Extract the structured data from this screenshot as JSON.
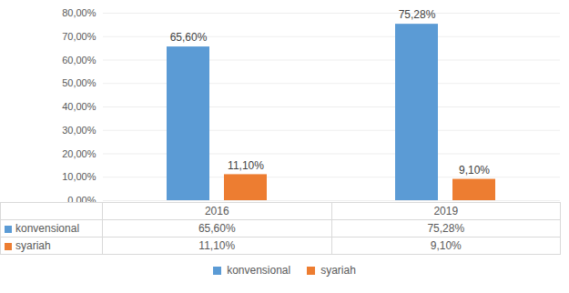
{
  "chart_data": {
    "type": "bar",
    "categories": [
      "2016",
      "2019"
    ],
    "series": [
      {
        "name": "konvensional",
        "color": "#5b9bd5",
        "values": [
          65.6,
          75.28
        ],
        "value_labels": [
          "65,60%",
          "75,28%"
        ]
      },
      {
        "name": "syariah",
        "color": "#ed7d31",
        "values": [
          11.1,
          9.1
        ],
        "value_labels": [
          "11,10%",
          "9,10%"
        ]
      }
    ],
    "ylim": [
      0,
      80
    ],
    "yticks": [
      {
        "value": 0,
        "label": "0,00%"
      },
      {
        "value": 10,
        "label": "10,00%"
      },
      {
        "value": 20,
        "label": "20,00%"
      },
      {
        "value": 30,
        "label": "30,00%"
      },
      {
        "value": 40,
        "label": "40,00%"
      },
      {
        "value": 50,
        "label": "50,00%"
      },
      {
        "value": 60,
        "label": "60,00%"
      },
      {
        "value": 70,
        "label": "70,00%"
      },
      {
        "value": 80,
        "label": "80,00%"
      }
    ],
    "grid": true,
    "data_labels": true,
    "legend": "bottom"
  }
}
